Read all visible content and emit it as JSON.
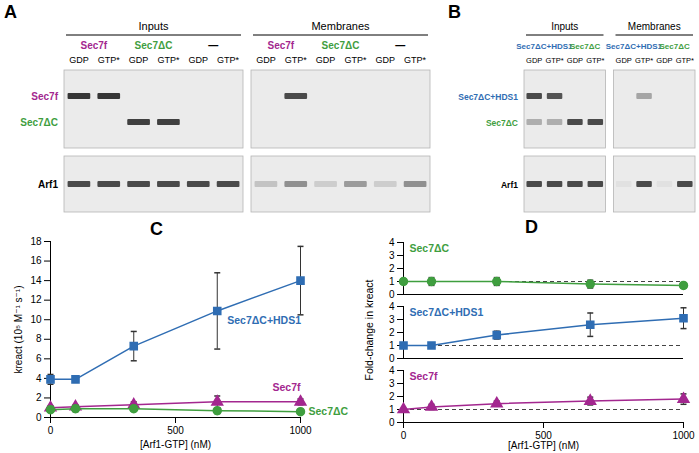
{
  "gels": [
    {
      "panel": "A",
      "groups": [
        "Inputs",
        "Membranes"
      ],
      "samples": [
        {
          "label": "Sec7f",
          "color": "#a3278f"
        },
        {
          "label": "Sec7ΔC",
          "color": "#3f9e3f"
        },
        {
          "label": "—",
          "color": "#000000"
        }
      ],
      "lanes": [
        "GDP",
        "GTP*"
      ],
      "gels": [
        {
          "rows": [
            {
              "label": "Sec7f",
              "color": "#a3278f",
              "bands": [
                0.9,
                0.9,
                0,
                0,
                0,
                0,
                0,
                0.8,
                0,
                0,
                0,
                0
              ]
            },
            {
              "label": "Sec7ΔC",
              "color": "#3f9e3f",
              "bands": [
                0,
                0,
                0.85,
                0.85,
                0,
                0,
                0,
                0,
                0,
                0,
                0,
                0
              ]
            }
          ]
        },
        {
          "rows": [
            {
              "label": "Arf1",
              "color": "#000000",
              "bands": [
                0.8,
                0.8,
                0.8,
                0.8,
                0.8,
                0.8,
                0.2,
                0.45,
                0.15,
                0.4,
                0.15,
                0.45
              ]
            }
          ]
        }
      ]
    },
    {
      "panel": "B",
      "groups": [
        "Inputs",
        "Membranes"
      ],
      "samples": [
        {
          "label": "Sec7ΔC+HDS1",
          "color": "#2f6db3"
        },
        {
          "label": "Sec7ΔC",
          "color": "#3f9e3f"
        }
      ],
      "lanes": [
        "GDP",
        "GTP*"
      ],
      "gels": [
        {
          "rows": [
            {
              "label": "Sec7ΔC+HDS1",
              "color": "#2f6db3",
              "bands": [
                0.8,
                0.75,
                0,
                0,
                0,
                0.35,
                0,
                0
              ]
            },
            {
              "label": "Sec7ΔC",
              "color": "#3f9e3f",
              "bands": [
                0.3,
                0.3,
                0.8,
                0.8,
                0,
                0,
                0,
                0
              ]
            }
          ]
        },
        {
          "rows": [
            {
              "label": "Arf1",
              "color": "#000000",
              "bands": [
                0.8,
                0.8,
                0.8,
                0.8,
                0.05,
                0.8,
                0.05,
                0.8
              ]
            }
          ]
        }
      ]
    }
  ],
  "chart_data": [
    {
      "panel": "C",
      "type": "line",
      "grid": false,
      "xlabel": "[Arf1-GTP] (nM)",
      "ylabel": "kreact (10⁵ M⁻¹ s⁻¹)",
      "x": [
        0,
        100,
        333,
        667,
        1000
      ],
      "xlim": [
        0,
        1000
      ],
      "xticks": [
        0,
        500,
        1000
      ],
      "ylim": [
        0,
        18
      ],
      "yticks": [
        0,
        2,
        4,
        6,
        8,
        10,
        12,
        14,
        16,
        18
      ],
      "series": [
        {
          "name": "Sec7ΔC+HDS1",
          "color": "#2f6db3",
          "marker": "square",
          "values": [
            3.9,
            3.9,
            7.3,
            10.9,
            14.0
          ],
          "errors": [
            0.5,
            0.3,
            1.5,
            3.9,
            3.5
          ]
        },
        {
          "name": "Sec7f",
          "color": "#a3278f",
          "marker": "triangle",
          "values": [
            1.0,
            1.1,
            1.3,
            1.6,
            1.6
          ],
          "errors": [
            0.2,
            0.2,
            0.3,
            0.6,
            0.3
          ]
        },
        {
          "name": "Sec7ΔC",
          "color": "#3f9e3f",
          "marker": "circle",
          "values": [
            0.8,
            0.9,
            0.9,
            0.7,
            0.6
          ],
          "errors": [
            0.2,
            0.3,
            0.2,
            0.3,
            0.1
          ]
        }
      ]
    },
    {
      "panel": "D",
      "type": "line",
      "grid": false,
      "xlabel": "[Arf1-GTP] (nM)",
      "ylabel": "Fold-change in kreact",
      "x": [
        0,
        100,
        333,
        667,
        1000
      ],
      "xlim": [
        0,
        1000
      ],
      "xticks": [
        0,
        500,
        1000
      ],
      "series": [
        {
          "name": "Sec7ΔC",
          "color": "#3f9e3f",
          "marker": "circle",
          "values": [
            1.0,
            1.0,
            1.0,
            0.8,
            0.7
          ],
          "errors": [
            0.2,
            0.3,
            0.3,
            0.3,
            0.2
          ],
          "ylim": [
            0,
            4
          ],
          "yticks": [
            0,
            1,
            2,
            3,
            4
          ],
          "baseline": 1
        },
        {
          "name": "Sec7ΔC+HDS1",
          "color": "#2f6db3",
          "marker": "square",
          "values": [
            1.0,
            1.0,
            1.8,
            2.6,
            3.1
          ],
          "errors": [
            0.1,
            0.1,
            0.3,
            0.9,
            0.8
          ],
          "ylim": [
            0,
            4
          ],
          "yticks": [
            0,
            1,
            2,
            3,
            4
          ],
          "baseline": 1
        },
        {
          "name": "Sec7f",
          "color": "#a3278f",
          "marker": "triangle",
          "values": [
            1.0,
            1.2,
            1.45,
            1.65,
            1.8
          ],
          "errors": [
            0.05,
            0.2,
            0.2,
            0.3,
            0.4
          ],
          "ylim": [
            0,
            4
          ],
          "yticks": [
            0,
            1,
            2,
            3,
            4
          ],
          "baseline": 1
        }
      ]
    }
  ]
}
